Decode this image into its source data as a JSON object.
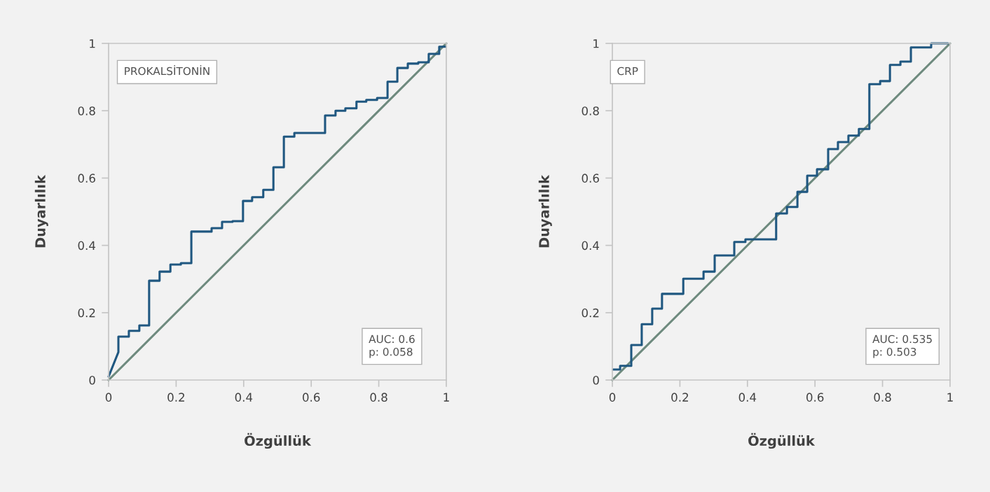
{
  "chart_data": [
    {
      "type": "line",
      "xlabel": "Özgüllük",
      "ylabel": "Duyarlılık",
      "xlim": [
        0,
        1
      ],
      "ylim": [
        0,
        1
      ],
      "xticks": [
        0,
        0.2,
        0.4,
        0.6,
        0.8,
        {
          "value": 1,
          "label": "1"
        }
      ],
      "yticks": [
        0,
        0.2,
        0.4,
        0.6,
        0.8,
        {
          "value": 1,
          "label": "1"
        }
      ],
      "grid": false,
      "annotations": [
        "PROKALSİTONİN",
        "AUC: 0.6",
        "p: 0.058"
      ],
      "series": [
        {
          "color": "#6e8a7e",
          "x": [
            0,
            1
          ],
          "values": [
            0,
            1
          ]
        },
        {
          "color": "#1f5780",
          "x": [
            0,
            0.029,
            0.029,
            0.06,
            0.06,
            0.091,
            0.091,
            0.12,
            0.12,
            0.151,
            0.151,
            0.183,
            0.183,
            0.214,
            0.214,
            0.245,
            0.245,
            0.305,
            0.305,
            0.336,
            0.336,
            0.367,
            0.367,
            0.398,
            0.398,
            0.425,
            0.425,
            0.458,
            0.458,
            0.488,
            0.488,
            0.519,
            0.519,
            0.55,
            0.55,
            0.641,
            0.641,
            0.672,
            0.672,
            0.701,
            0.701,
            0.734,
            0.734,
            0.763,
            0.763,
            0.795,
            0.795,
            0.826,
            0.826,
            0.855,
            0.855,
            0.886,
            0.886,
            0.917,
            0.917,
            0.948,
            0.948,
            0.979,
            0.979,
            0.998
          ],
          "values": [
            0.01,
            0.083,
            0.129,
            0.129,
            0.146,
            0.146,
            0.162,
            0.162,
            0.295,
            0.295,
            0.322,
            0.322,
            0.343,
            0.343,
            0.347,
            0.347,
            0.441,
            0.441,
            0.451,
            0.451,
            0.47,
            0.47,
            0.472,
            0.472,
            0.532,
            0.532,
            0.543,
            0.543,
            0.565,
            0.565,
            0.632,
            0.632,
            0.723,
            0.723,
            0.734,
            0.734,
            0.786,
            0.786,
            0.8,
            0.8,
            0.807,
            0.807,
            0.827,
            0.827,
            0.832,
            0.832,
            0.838,
            0.838,
            0.886,
            0.886,
            0.927,
            0.927,
            0.94,
            0.94,
            0.944,
            0.944,
            0.969,
            0.969,
            0.99,
            0.99
          ]
        }
      ]
    },
    {
      "type": "line",
      "xlabel": "Özgüllük",
      "ylabel": "Duyarlılık",
      "xlim": [
        0,
        1
      ],
      "ylim": [
        0,
        1
      ],
      "xticks": [
        0,
        0.2,
        0.4,
        0.6,
        0.8,
        {
          "value": 1,
          "label": "1"
        }
      ],
      "yticks": [
        0,
        0.2,
        0.4,
        0.6,
        0.8,
        {
          "value": 1,
          "label": "1"
        }
      ],
      "grid": false,
      "annotations": [
        "CRP",
        "AUC: 0.535",
        "p: 0.503"
      ],
      "series": [
        {
          "color": "#6e8a7e",
          "x": [
            0,
            1
          ],
          "values": [
            0,
            1
          ]
        },
        {
          "color": "#1f5780",
          "x": [
            0.002,
            0.023,
            0.023,
            0.056,
            0.056,
            0.087,
            0.087,
            0.118,
            0.118,
            0.147,
            0.147,
            0.21,
            0.21,
            0.27,
            0.27,
            0.303,
            0.303,
            0.361,
            0.361,
            0.394,
            0.394,
            0.485,
            0.485,
            0.517,
            0.517,
            0.548,
            0.548,
            0.577,
            0.577,
            0.606,
            0.606,
            0.639,
            0.639,
            0.668,
            0.668,
            0.699,
            0.699,
            0.73,
            0.73,
            0.761,
            0.761,
            0.793,
            0.793,
            0.822,
            0.822,
            0.853,
            0.853,
            0.884,
            0.884,
            0.944,
            0.944,
            0.994
          ],
          "values": [
            0.031,
            0.031,
            0.042,
            0.042,
            0.104,
            0.104,
            0.166,
            0.166,
            0.212,
            0.212,
            0.256,
            0.256,
            0.301,
            0.301,
            0.322,
            0.322,
            0.37,
            0.37,
            0.41,
            0.41,
            0.418,
            0.418,
            0.495,
            0.495,
            0.514,
            0.514,
            0.559,
            0.559,
            0.607,
            0.607,
            0.626,
            0.626,
            0.686,
            0.686,
            0.707,
            0.707,
            0.726,
            0.726,
            0.746,
            0.746,
            0.879,
            0.879,
            0.888,
            0.888,
            0.936,
            0.936,
            0.946,
            0.946,
            0.988,
            0.988,
            1.0,
            1.0
          ]
        }
      ]
    }
  ]
}
